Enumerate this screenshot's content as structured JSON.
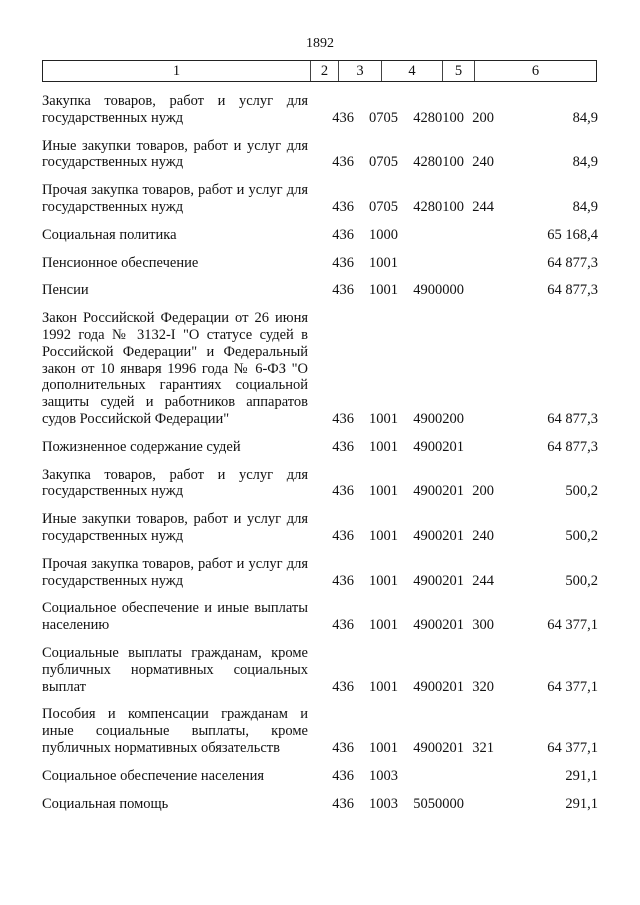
{
  "page_number": "1892",
  "headers": [
    "1",
    "2",
    "3",
    "4",
    "5",
    "6"
  ],
  "rows": [
    {
      "name": "Закупка товаров, работ и услуг для государственных нужд",
      "c2": "436",
      "c3": "0705",
      "c4": "4280100",
      "c5": "200",
      "c6": "84,9"
    },
    {
      "name": "Иные закупки товаров, работ и услуг для государственных нужд",
      "c2": "436",
      "c3": "0705",
      "c4": "4280100",
      "c5": "240",
      "c6": "84,9"
    },
    {
      "name": "Прочая закупка товаров, работ и услуг для государственных нужд",
      "c2": "436",
      "c3": "0705",
      "c4": "4280100",
      "c5": "244",
      "c6": "84,9"
    },
    {
      "name": "Социальная политика",
      "c2": "436",
      "c3": "1000",
      "c4": "",
      "c5": "",
      "c6": "65 168,4"
    },
    {
      "name": "Пенсионное обеспечение",
      "c2": "436",
      "c3": "1001",
      "c4": "",
      "c5": "",
      "c6": "64 877,3"
    },
    {
      "name": "Пенсии",
      "c2": "436",
      "c3": "1001",
      "c4": "4900000",
      "c5": "",
      "c6": "64 877,3"
    },
    {
      "name": "Закон Российской Федерации от 26 июня 1992 года № 3132-I \"О статусе судей в Российской Федерации\" и Федеральный закон от 10 января 1996 года № 6-ФЗ \"О дополнительных гарантиях социальной защиты судей и работников аппаратов судов Российской Федерации\"",
      "c2": "436",
      "c3": "1001",
      "c4": "4900200",
      "c5": "",
      "c6": "64 877,3"
    },
    {
      "name": "Пожизненное содержание судей",
      "c2": "436",
      "c3": "1001",
      "c4": "4900201",
      "c5": "",
      "c6": "64 877,3"
    },
    {
      "name": "Закупка товаров, работ и услуг для государственных нужд",
      "c2": "436",
      "c3": "1001",
      "c4": "4900201",
      "c5": "200",
      "c6": "500,2"
    },
    {
      "name": "Иные закупки товаров, работ и услуг для государственных нужд",
      "c2": "436",
      "c3": "1001",
      "c4": "4900201",
      "c5": "240",
      "c6": "500,2"
    },
    {
      "name": "Прочая закупка товаров, работ и услуг для государственных нужд",
      "c2": "436",
      "c3": "1001",
      "c4": "4900201",
      "c5": "244",
      "c6": "500,2"
    },
    {
      "name": "Социальное обеспечение и иные выплаты населению",
      "c2": "436",
      "c3": "1001",
      "c4": "4900201",
      "c5": "300",
      "c6": "64 377,1"
    },
    {
      "name": "Социальные выплаты гражданам, кроме публичных нормативных социальных выплат",
      "c2": "436",
      "c3": "1001",
      "c4": "4900201",
      "c5": "320",
      "c6": "64 377,1"
    },
    {
      "name": "Пособия и компенсации гражданам и иные социальные выплаты, кроме публичных нормативных обязательств",
      "c2": "436",
      "c3": "1001",
      "c4": "4900201",
      "c5": "321",
      "c6": "64 377,1"
    },
    {
      "name": "Социальное обеспечение населения",
      "c2": "436",
      "c3": "1003",
      "c4": "",
      "c5": "",
      "c6": "291,1"
    },
    {
      "name": "Социальная помощь",
      "c2": "436",
      "c3": "1003",
      "c4": "5050000",
      "c5": "",
      "c6": "291,1"
    }
  ]
}
